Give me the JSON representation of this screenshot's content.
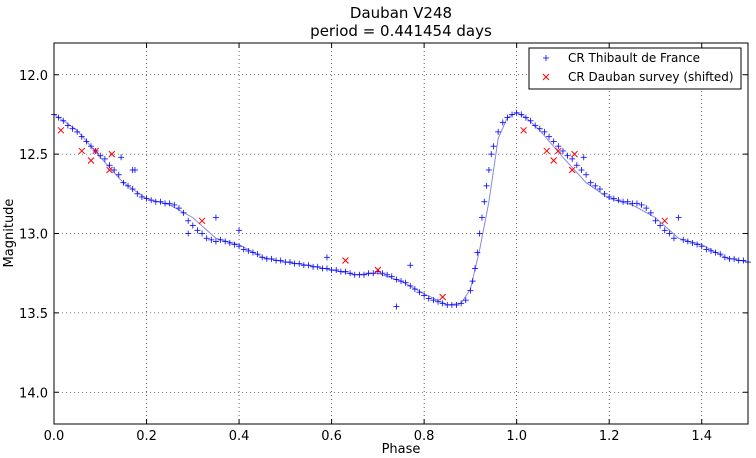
{
  "chart_data": {
    "type": "scatter",
    "title": "Dauban V248",
    "subtitle": "period = 0.441454 days",
    "xlabel": "Phase",
    "ylabel": "Magnitude",
    "xlim": [
      0.0,
      1.5
    ],
    "ylim": [
      14.2,
      11.8
    ],
    "y_inverted": true,
    "grid": true,
    "legend_position": "top-right",
    "x_ticks": [
      "0.0",
      "0.2",
      "0.4",
      "0.6",
      "0.8",
      "1.0",
      "1.2",
      "1.4"
    ],
    "y_ticks": [
      "12.0",
      "12.5",
      "13.0",
      "13.5",
      "14.0"
    ],
    "fit_curve": {
      "color": "#8888dd",
      "x": [
        0.0,
        0.05,
        0.1,
        0.15,
        0.2,
        0.25,
        0.3,
        0.35,
        0.4,
        0.45,
        0.5,
        0.55,
        0.6,
        0.65,
        0.7,
        0.75,
        0.8,
        0.85,
        0.88,
        0.9,
        0.92,
        0.94,
        0.96,
        0.98,
        1.0,
        1.02,
        1.05,
        1.1,
        1.15,
        1.2,
        1.25,
        1.3,
        1.35,
        1.4,
        1.45,
        1.5
      ],
      "y": [
        12.25,
        12.35,
        12.52,
        12.68,
        12.78,
        12.82,
        12.9,
        13.03,
        13.07,
        13.15,
        13.18,
        13.2,
        13.23,
        13.26,
        13.25,
        13.3,
        13.38,
        13.45,
        13.44,
        13.35,
        13.1,
        12.8,
        12.4,
        12.27,
        12.24,
        12.27,
        12.35,
        12.52,
        12.68,
        12.78,
        12.82,
        12.9,
        13.03,
        13.07,
        13.15,
        13.18
      ]
    },
    "series": [
      {
        "name": "CR Thibault de France",
        "marker": "plus",
        "color": "#0000ff",
        "x": [
          0.0,
          0.01,
          0.02,
          0.03,
          0.04,
          0.05,
          0.06,
          0.07,
          0.08,
          0.09,
          0.1,
          0.11,
          0.12,
          0.13,
          0.14,
          0.145,
          0.15,
          0.16,
          0.17,
          0.175,
          0.18,
          0.19,
          0.2,
          0.21,
          0.22,
          0.23,
          0.24,
          0.25,
          0.26,
          0.27,
          0.28,
          0.29,
          0.3,
          0.31,
          0.32,
          0.33,
          0.34,
          0.35,
          0.36,
          0.37,
          0.38,
          0.39,
          0.4,
          0.41,
          0.42,
          0.43,
          0.44,
          0.45,
          0.46,
          0.47,
          0.48,
          0.49,
          0.5,
          0.51,
          0.52,
          0.53,
          0.54,
          0.55,
          0.56,
          0.57,
          0.58,
          0.59,
          0.6,
          0.61,
          0.62,
          0.63,
          0.64,
          0.65,
          0.66,
          0.67,
          0.68,
          0.69,
          0.7,
          0.71,
          0.72,
          0.73,
          0.74,
          0.75,
          0.76,
          0.77,
          0.78,
          0.79,
          0.8,
          0.81,
          0.82,
          0.83,
          0.84,
          0.85,
          0.86,
          0.87,
          0.88,
          0.89,
          0.9,
          0.905,
          0.91,
          0.915,
          0.92,
          0.925,
          0.93,
          0.935,
          0.94,
          0.945,
          0.95,
          0.96,
          0.97,
          0.98,
          0.99,
          1.0,
          1.01,
          1.02,
          1.03,
          1.04,
          1.05,
          1.06,
          1.07,
          1.08,
          1.09,
          1.1,
          1.11,
          1.12,
          1.13,
          1.14,
          1.145,
          1.15,
          1.16,
          1.17,
          1.18,
          1.19,
          1.2,
          1.21,
          1.22,
          1.23,
          1.24,
          1.25,
          1.26,
          1.27,
          1.28,
          1.29,
          1.3,
          1.31,
          1.32,
          1.33,
          1.34,
          1.35,
          1.36,
          1.37,
          1.38,
          1.39,
          1.4,
          1.41,
          1.42,
          1.43,
          1.44,
          1.45,
          1.46,
          1.47,
          1.48,
          1.49,
          1.5,
          0.17,
          0.29,
          0.35,
          0.4,
          0.59,
          0.74,
          0.77
        ],
        "y": [
          12.25,
          12.27,
          12.29,
          12.32,
          12.34,
          12.36,
          12.39,
          12.42,
          12.45,
          12.48,
          12.51,
          12.53,
          12.57,
          12.6,
          12.63,
          12.52,
          12.68,
          12.7,
          12.72,
          12.6,
          12.75,
          12.77,
          12.78,
          12.79,
          12.8,
          12.8,
          12.81,
          12.81,
          12.82,
          12.84,
          12.87,
          12.92,
          12.95,
          12.98,
          13.0,
          13.03,
          13.04,
          13.05,
          13.04,
          13.05,
          13.06,
          13.07,
          13.08,
          13.1,
          13.11,
          13.12,
          13.13,
          13.15,
          13.16,
          13.16,
          13.17,
          13.17,
          13.18,
          13.18,
          13.19,
          13.19,
          13.2,
          13.2,
          13.21,
          13.21,
          13.22,
          13.22,
          13.23,
          13.23,
          13.24,
          13.24,
          13.25,
          13.26,
          13.26,
          13.26,
          13.25,
          13.25,
          13.24,
          13.25,
          13.26,
          13.27,
          13.29,
          13.3,
          13.31,
          13.33,
          13.35,
          13.37,
          13.39,
          13.41,
          13.42,
          13.43,
          13.44,
          13.45,
          13.45,
          13.45,
          13.44,
          13.42,
          13.36,
          13.3,
          13.22,
          13.12,
          13.0,
          12.9,
          12.8,
          12.7,
          12.6,
          12.5,
          12.45,
          12.36,
          12.3,
          12.27,
          12.25,
          12.24,
          12.25,
          12.27,
          12.29,
          12.32,
          12.34,
          12.36,
          12.39,
          12.42,
          12.45,
          12.48,
          12.51,
          12.53,
          12.57,
          12.6,
          12.52,
          12.63,
          12.68,
          12.7,
          12.72,
          12.75,
          12.77,
          12.78,
          12.79,
          12.8,
          12.8,
          12.81,
          12.81,
          12.82,
          12.84,
          12.87,
          12.92,
          12.95,
          12.98,
          13.0,
          13.03,
          12.9,
          13.04,
          13.05,
          13.06,
          13.07,
          13.08,
          13.1,
          13.11,
          13.12,
          13.13,
          13.15,
          13.16,
          13.16,
          13.17,
          13.17,
          13.18,
          12.6,
          13.0,
          12.9,
          12.98,
          13.15,
          13.46,
          13.2
        ]
      },
      {
        "name": "CR Dauban survey (shifted)",
        "marker": "x",
        "color": "#ff0000",
        "x": [
          0.015,
          0.06,
          0.08,
          0.09,
          0.12,
          0.125,
          0.32,
          0.63,
          0.7,
          0.84,
          1.015,
          1.065,
          1.08,
          1.09,
          1.12,
          1.125,
          1.32
        ],
        "y": [
          12.35,
          12.48,
          12.54,
          12.48,
          12.6,
          12.5,
          12.92,
          13.17,
          13.23,
          13.4,
          12.35,
          12.48,
          12.54,
          12.48,
          12.6,
          12.5,
          12.92
        ]
      }
    ]
  }
}
